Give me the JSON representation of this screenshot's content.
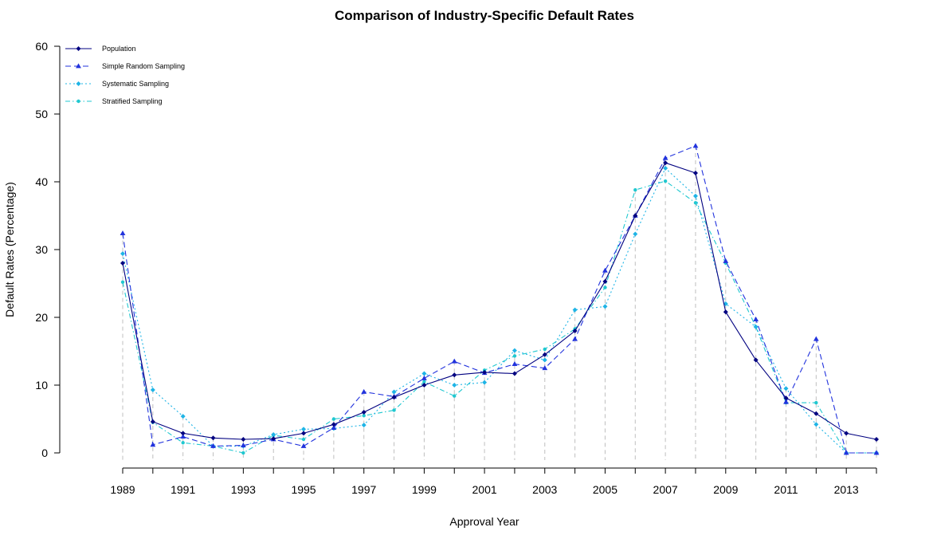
{
  "chart_data": {
    "type": "line",
    "title": "Comparison of Industry-Specific Default Rates",
    "xlabel": "Approval Year",
    "ylabel": "Default Rates (Percentage)",
    "x": [
      1989,
      1990,
      1991,
      1992,
      1993,
      1994,
      1995,
      1996,
      1997,
      1998,
      1999,
      2000,
      2001,
      2002,
      2003,
      2004,
      2005,
      2006,
      2007,
      2008,
      2009,
      2010,
      2011,
      2012,
      2013,
      2014
    ],
    "x_tick_labels": [
      "1989",
      "1991",
      "1993",
      "1995",
      "1997",
      "1999",
      "2001",
      "2003",
      "2005",
      "2007",
      "2009",
      "2011",
      "2013"
    ],
    "x_ticks": [
      1989,
      1990,
      1991,
      1992,
      1993,
      1994,
      1995,
      1996,
      1997,
      1998,
      1999,
      2000,
      2001,
      2002,
      2003,
      2004,
      2005,
      2006,
      2007,
      2008,
      2009,
      2010,
      2011,
      2012,
      2013,
      2014
    ],
    "ylim": [
      0,
      60
    ],
    "y_ticks": [
      0,
      10,
      20,
      30,
      40,
      50,
      60
    ],
    "y_tick_labels": [
      "0",
      "10",
      "20",
      "30",
      "40",
      "50",
      "60"
    ],
    "legend_position": "top-left",
    "grid": "vertical dashed drop lines",
    "series": [
      {
        "name": "Population",
        "color": "#000080",
        "dash": "solid",
        "marker": "diamond",
        "values": [
          28.0,
          4.6,
          2.9,
          2.2,
          2.0,
          2.1,
          2.9,
          4.2,
          6.0,
          8.2,
          10.0,
          11.5,
          11.9,
          11.7,
          14.5,
          18.0,
          25.3,
          35.0,
          42.8,
          41.3,
          20.8,
          13.7,
          8.1,
          5.8,
          2.9,
          2.0
        ]
      },
      {
        "name": "Simple Random Sampling",
        "color": "#2233dd",
        "dash": "long",
        "marker": "triangle",
        "values": [
          32.4,
          1.2,
          2.4,
          1.0,
          1.1,
          2.0,
          1.0,
          3.7,
          9.0,
          8.3,
          11.0,
          13.5,
          11.8,
          13.1,
          12.5,
          16.8,
          26.9,
          35.0,
          43.5,
          45.3,
          28.3,
          19.7,
          7.5,
          16.8,
          0.0,
          0.0
        ]
      },
      {
        "name": "Systematic Sampling",
        "color": "#1eb4e6",
        "dash": "dotted",
        "marker": "diamond",
        "values": [
          29.4,
          9.3,
          5.4,
          1.0,
          1.0,
          2.7,
          3.5,
          3.6,
          4.1,
          9.0,
          11.7,
          10.0,
          10.4,
          15.1,
          13.7,
          21.1,
          21.6,
          32.3,
          42.0,
          37.9,
          22.0,
          18.6,
          9.5,
          4.2,
          0.0,
          0.0
        ]
      },
      {
        "name": "Stratified Sampling",
        "color": "#20c8d0",
        "dash": "dotdash",
        "marker": "dot",
        "values": [
          25.2,
          4.5,
          1.5,
          1.0,
          0.0,
          2.6,
          2.0,
          5.0,
          5.5,
          6.3,
          10.5,
          8.4,
          12.2,
          14.3,
          15.3,
          18.3,
          24.4,
          38.8,
          40.1,
          36.9,
          28.0,
          18.6,
          7.4,
          7.4,
          0.0,
          0.0
        ]
      }
    ],
    "drop_line_color": "#bfbfbf"
  }
}
